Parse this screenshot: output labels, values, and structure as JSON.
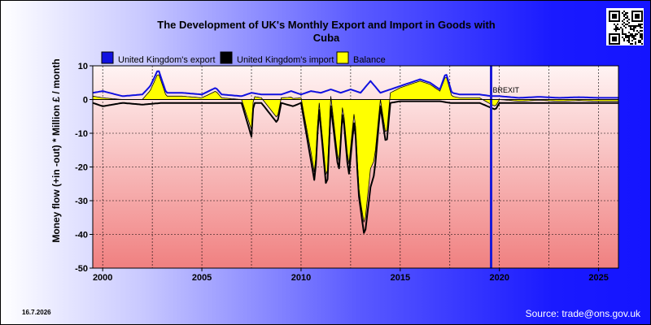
{
  "page": {
    "title_line1": "The Development of UK's Monthly Export and Import in Goods with",
    "title_line2": "Cuba",
    "date_stamp": "16.7.2026",
    "source": "Source: trade@ons.gov.uk",
    "qr_code_icon": "qr-code-icon"
  },
  "colors": {
    "export": "#1010e0",
    "import": "#000000",
    "balance": "#ffff00",
    "brexit_line": "#1a1ad8",
    "plot_top": "#fff4f4",
    "plot_bottom": "#f08080"
  },
  "chart_data": {
    "type": "line",
    "title": "The Development of UK's Monthly Export and Import in Goods with Cuba",
    "ylabel": "Money flow (+in -out) * Million £ / month",
    "xlabel": "",
    "ylim": [
      -50,
      10
    ],
    "xlim": [
      1999.5,
      2026.0
    ],
    "yticks": [
      10,
      0,
      -10,
      -20,
      -30,
      -40,
      -50
    ],
    "xticks": [
      2000,
      2005,
      2010,
      2015,
      2020,
      2025
    ],
    "grid": true,
    "legend_placement": "top",
    "annotation": {
      "text": "BREXIT",
      "x": 2019.58
    },
    "series": [
      {
        "name": "United Kingdom's export",
        "kind": "line",
        "points": [
          [
            1999.5,
            2
          ],
          [
            2000,
            2.5
          ],
          [
            2001,
            1
          ],
          [
            2002,
            1.5
          ],
          [
            2002.4,
            4
          ],
          [
            2002.8,
            9
          ],
          [
            2003.2,
            2
          ],
          [
            2004,
            2
          ],
          [
            2005,
            1.5
          ],
          [
            2005.7,
            3.5
          ],
          [
            2006,
            1.5
          ],
          [
            2007,
            1
          ],
          [
            2007.5,
            2
          ],
          [
            2008,
            1.5
          ],
          [
            2009,
            1.5
          ],
          [
            2009.5,
            2.5
          ],
          [
            2010,
            1.5
          ],
          [
            2010.5,
            2.5
          ],
          [
            2011,
            2
          ],
          [
            2011.5,
            3
          ],
          [
            2012,
            2
          ],
          [
            2012.5,
            3
          ],
          [
            2013,
            2
          ],
          [
            2013.5,
            5.5
          ],
          [
            2014,
            2
          ],
          [
            2014.5,
            3
          ],
          [
            2015,
            4
          ],
          [
            2015.5,
            5
          ],
          [
            2016,
            6
          ],
          [
            2016.5,
            5
          ],
          [
            2017,
            3
          ],
          [
            2017.3,
            8
          ],
          [
            2017.6,
            2
          ],
          [
            2018,
            1.5
          ],
          [
            2019,
            1.5
          ],
          [
            2019.6,
            1
          ],
          [
            2020,
            1
          ],
          [
            2021,
            0.5
          ],
          [
            2022,
            0.8
          ],
          [
            2023,
            0.5
          ],
          [
            2024,
            0.7
          ],
          [
            2025,
            0.5
          ],
          [
            2026,
            0.5
          ]
        ]
      },
      {
        "name": "United Kingdom's import",
        "kind": "line",
        "points": [
          [
            1999.5,
            -1
          ],
          [
            2000,
            -2
          ],
          [
            2001,
            -1
          ],
          [
            2002,
            -1.5
          ],
          [
            2003,
            -1
          ],
          [
            2004,
            -1
          ],
          [
            2005,
            -1
          ],
          [
            2006,
            -1
          ],
          [
            2007,
            -1
          ],
          [
            2007.5,
            -11
          ],
          [
            2007.6,
            -1
          ],
          [
            2008,
            -1
          ],
          [
            2008.8,
            -7
          ],
          [
            2009,
            -1
          ],
          [
            2009.6,
            -2
          ],
          [
            2010,
            -1
          ],
          [
            2010.7,
            -25
          ],
          [
            2010.9,
            -2
          ],
          [
            2011.3,
            -28
          ],
          [
            2011.5,
            -2
          ],
          [
            2011.9,
            -22
          ],
          [
            2012.1,
            -3
          ],
          [
            2012.4,
            -23
          ],
          [
            2012.7,
            -5
          ],
          [
            2012.9,
            -28
          ],
          [
            2013.2,
            -41
          ],
          [
            2013.5,
            -26
          ],
          [
            2013.7,
            -22
          ],
          [
            2014,
            -2
          ],
          [
            2014.3,
            -14
          ],
          [
            2014.5,
            -1
          ],
          [
            2015,
            -0.5
          ],
          [
            2016,
            -0.5
          ],
          [
            2017,
            -0.5
          ],
          [
            2017.5,
            -1
          ],
          [
            2018,
            -1
          ],
          [
            2019,
            -1
          ],
          [
            2019.8,
            -3
          ],
          [
            2020,
            -1
          ],
          [
            2021,
            -1
          ],
          [
            2022,
            -1
          ],
          [
            2023,
            -1
          ],
          [
            2024,
            -1
          ],
          [
            2025,
            -1
          ],
          [
            2026,
            -1
          ]
        ]
      },
      {
        "name": "Balance",
        "kind": "area"
      }
    ]
  }
}
